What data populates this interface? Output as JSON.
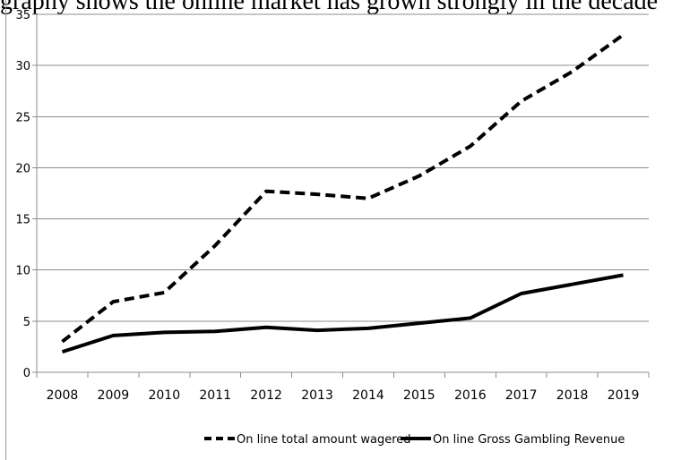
{
  "page_text": "graphy shows the online market has grown strongly in the decade",
  "chart_data": {
    "type": "line",
    "title": "",
    "xlabel": "",
    "ylabel": "",
    "x": [
      "2008",
      "2009",
      "2010",
      "2011",
      "2012",
      "2013",
      "2014",
      "2015",
      "2016",
      "2017",
      "2018",
      "2019"
    ],
    "ylim": [
      0,
      35
    ],
    "yticks": [
      0,
      5,
      10,
      15,
      20,
      25,
      30,
      35
    ],
    "grid": "horizontal",
    "legend_position": "bottom",
    "series": [
      {
        "name": "On line total amount wagered",
        "style": "dashed",
        "color": "#000000",
        "values": [
          3.0,
          6.9,
          7.8,
          12.4,
          17.7,
          17.4,
          17.0,
          19.2,
          22.1,
          26.5,
          29.4,
          33.0
        ]
      },
      {
        "name": "On line Gross Gambling Revenue",
        "style": "solid",
        "color": "#000000",
        "values": [
          2.0,
          3.6,
          3.9,
          4.0,
          4.4,
          4.1,
          4.3,
          4.8,
          5.3,
          7.7,
          8.6,
          9.5
        ]
      }
    ]
  }
}
